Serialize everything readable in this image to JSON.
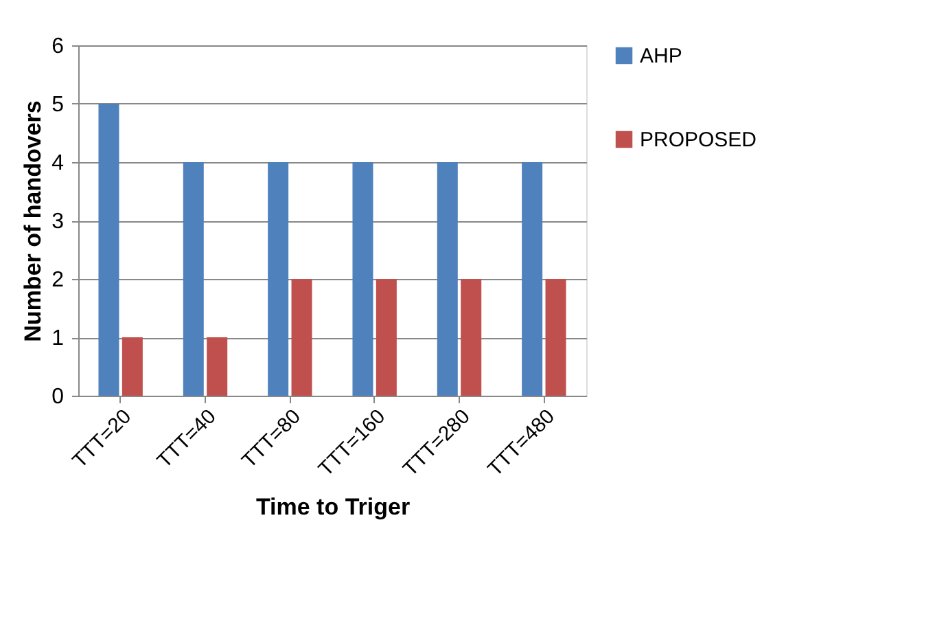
{
  "chart_data": {
    "type": "bar",
    "xlabel": "Time to Triger",
    "ylabel": "Number of handovers",
    "categories": [
      "TTT=20",
      "TTT=40",
      "TTT=80",
      "TTT=160",
      "TTT=280",
      "TTT=480"
    ],
    "series": [
      {
        "name": "AHP",
        "color": "#4f81bd",
        "values": [
          5,
          4,
          4,
          4,
          4,
          4
        ]
      },
      {
        "name": "PROPOSED",
        "color": "#c0504d",
        "values": [
          1,
          1,
          2,
          2,
          2,
          2
        ]
      }
    ],
    "ylim": [
      0,
      6
    ],
    "yticks": [
      0,
      1,
      2,
      3,
      4,
      5,
      6
    ],
    "grid": "y",
    "legend": "right"
  }
}
